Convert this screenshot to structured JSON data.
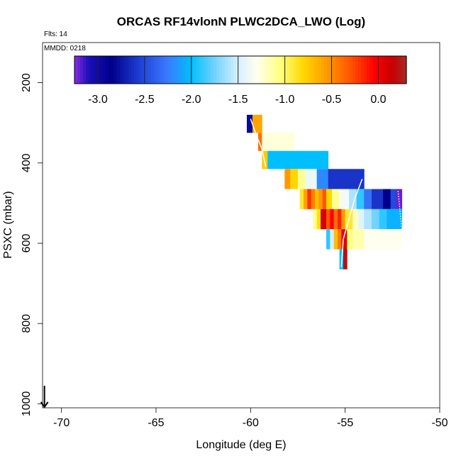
{
  "chart_data": {
    "type": "heatmap",
    "title": "ORCAS RF14vlonN PLWC2DCA_LWO (Log)",
    "flights_label": "Flts: 14",
    "date_label": "MMDD: 0218",
    "xlabel": "Longitude (deg E)",
    "ylabel": "PSXC (mbar)",
    "xlim": [
      -71,
      -50
    ],
    "ylim": [
      1010,
      100
    ],
    "x_ticks": [
      -70,
      -65,
      -60,
      -55,
      -50
    ],
    "x_tick_labels": [
      "-70",
      "-65",
      "-60",
      "-55",
      "-50"
    ],
    "y_ticks": [
      200,
      400,
      600,
      800,
      1000
    ],
    "y_tick_labels": [
      "200",
      "400",
      "600",
      "800",
      "1000"
    ],
    "colorbar": {
      "range": [
        -3.25,
        0.3
      ],
      "ticks": [
        -3.0,
        -2.5,
        -2.0,
        -1.5,
        -1.0,
        -0.5,
        0.0
      ],
      "tick_labels": [
        "-3.0",
        "-2.5",
        "-2.0",
        "-1.5",
        "-1.0",
        "-0.5",
        "0.0"
      ],
      "stops": [
        {
          "v": -3.25,
          "c": "#8a2be2"
        },
        {
          "v": -3.1,
          "c": "#1a0fb8"
        },
        {
          "v": -2.85,
          "c": "#00008b"
        },
        {
          "v": -2.55,
          "c": "#1f3fd6"
        },
        {
          "v": -2.25,
          "c": "#3a7bff"
        },
        {
          "v": -2.0,
          "c": "#00bfff"
        },
        {
          "v": -1.75,
          "c": "#73d2ff"
        },
        {
          "v": -1.5,
          "c": "#d6f0ff"
        },
        {
          "v": -1.3,
          "c": "#fffff0"
        },
        {
          "v": -1.05,
          "c": "#ffff80"
        },
        {
          "v": -0.8,
          "c": "#ffd700"
        },
        {
          "v": -0.55,
          "c": "#ff9900"
        },
        {
          "v": -0.3,
          "c": "#ff5500"
        },
        {
          "v": -0.05,
          "c": "#ff0000"
        },
        {
          "v": 0.15,
          "c": "#c80000"
        },
        {
          "v": 0.3,
          "c": "#a52a2a"
        }
      ]
    },
    "cells": [
      {
        "x0": -60.2,
        "x1": -59.9,
        "p0": 280,
        "p1": 325,
        "v": -2.8
      },
      {
        "x0": -59.9,
        "x1": -59.4,
        "p0": 280,
        "p1": 325,
        "v": -0.6
      },
      {
        "x0": -59.6,
        "x1": -59.4,
        "p0": 325,
        "p1": 370,
        "v": -0.4
      },
      {
        "x0": -59.4,
        "x1": -57.7,
        "p0": 325,
        "p1": 370,
        "v": -1.25
      },
      {
        "x0": -59.4,
        "x1": -59.1,
        "p0": 370,
        "p1": 415,
        "v": -0.75
      },
      {
        "x0": -59.1,
        "x1": -55.9,
        "p0": 370,
        "p1": 415,
        "v": -2.0
      },
      {
        "x0": -58.2,
        "x1": -57.9,
        "p0": 415,
        "p1": 465,
        "v": -0.55
      },
      {
        "x0": -57.9,
        "x1": -57.5,
        "p0": 415,
        "p1": 465,
        "v": -0.8
      },
      {
        "x0": -57.5,
        "x1": -57.1,
        "p0": 415,
        "p1": 465,
        "v": -1.1
      },
      {
        "x0": -57.1,
        "x1": -56.5,
        "p0": 415,
        "p1": 465,
        "v": -1.4
      },
      {
        "x0": -56.5,
        "x1": -55.9,
        "p0": 415,
        "p1": 465,
        "v": -2.2
      },
      {
        "x0": -55.9,
        "x1": -54.0,
        "p0": 415,
        "p1": 465,
        "v": -2.6
      },
      {
        "x0": -57.4,
        "x1": -57.2,
        "p0": 465,
        "p1": 515,
        "v": -0.9
      },
      {
        "x0": -57.2,
        "x1": -57.0,
        "p0": 465,
        "p1": 515,
        "v": -0.6
      },
      {
        "x0": -57.0,
        "x1": -56.8,
        "p0": 465,
        "p1": 515,
        "v": -0.2
      },
      {
        "x0": -56.8,
        "x1": -56.6,
        "p0": 465,
        "p1": 515,
        "v": -0.45
      },
      {
        "x0": -56.6,
        "x1": -56.4,
        "p0": 465,
        "p1": 515,
        "v": -0.7
      },
      {
        "x0": -56.4,
        "x1": -56.2,
        "p0": 465,
        "p1": 515,
        "v": -0.55
      },
      {
        "x0": -56.2,
        "x1": -56.0,
        "p0": 465,
        "p1": 515,
        "v": -0.3
      },
      {
        "x0": -56.0,
        "x1": -55.7,
        "p0": 465,
        "p1": 515,
        "v": -0.8
      },
      {
        "x0": -55.7,
        "x1": -55.3,
        "p0": 465,
        "p1": 515,
        "v": -1.1
      },
      {
        "x0": -55.3,
        "x1": -54.8,
        "p0": 465,
        "p1": 515,
        "v": -1.35
      },
      {
        "x0": -54.8,
        "x1": -54.4,
        "p0": 465,
        "p1": 515,
        "v": -1.6
      },
      {
        "x0": -54.4,
        "x1": -54.0,
        "p0": 465,
        "p1": 515,
        "v": -1.9
      },
      {
        "x0": -54.0,
        "x1": -53.6,
        "p0": 465,
        "p1": 515,
        "v": -2.3
      },
      {
        "x0": -53.6,
        "x1": -53.0,
        "p0": 465,
        "p1": 515,
        "v": -2.6
      },
      {
        "x0": -53.0,
        "x1": -52.6,
        "p0": 465,
        "p1": 515,
        "v": -2.85
      },
      {
        "x0": -52.6,
        "x1": -52.3,
        "p0": 465,
        "p1": 515,
        "v": -2.5
      },
      {
        "x0": -52.3,
        "x1": -52.0,
        "p0": 465,
        "p1": 515,
        "v": -3.2
      },
      {
        "x0": -56.7,
        "x1": -56.5,
        "p0": 515,
        "p1": 565,
        "v": -1.1
      },
      {
        "x0": -56.5,
        "x1": -56.3,
        "p0": 515,
        "p1": 565,
        "v": -0.85
      },
      {
        "x0": -56.3,
        "x1": -56.0,
        "p0": 515,
        "p1": 565,
        "v": 0.1
      },
      {
        "x0": -56.0,
        "x1": -55.8,
        "p0": 515,
        "p1": 565,
        "v": -0.3
      },
      {
        "x0": -55.8,
        "x1": -55.6,
        "p0": 515,
        "p1": 565,
        "v": -0.05
      },
      {
        "x0": -55.6,
        "x1": -55.4,
        "p0": 515,
        "p1": 565,
        "v": -0.4
      },
      {
        "x0": -55.4,
        "x1": -55.2,
        "p0": 515,
        "p1": 565,
        "v": -0.15
      },
      {
        "x0": -55.2,
        "x1": -55.0,
        "p0": 515,
        "p1": 565,
        "v": -0.55
      },
      {
        "x0": -55.0,
        "x1": -54.6,
        "p0": 515,
        "p1": 565,
        "v": -0.9
      },
      {
        "x0": -54.6,
        "x1": -54.3,
        "p0": 515,
        "p1": 565,
        "v": -1.2
      },
      {
        "x0": -54.3,
        "x1": -54.0,
        "p0": 515,
        "p1": 565,
        "v": -1.45
      },
      {
        "x0": -54.0,
        "x1": -53.6,
        "p0": 515,
        "p1": 565,
        "v": -1.6
      },
      {
        "x0": -53.6,
        "x1": -53.2,
        "p0": 515,
        "p1": 565,
        "v": -1.75
      },
      {
        "x0": -53.2,
        "x1": -52.8,
        "p0": 515,
        "p1": 565,
        "v": -1.9
      },
      {
        "x0": -52.8,
        "x1": -52.0,
        "p0": 515,
        "p1": 565,
        "v": -2.05
      },
      {
        "x0": -56.0,
        "x1": -55.8,
        "p0": 565,
        "p1": 615,
        "v": -1.9
      },
      {
        "x0": -55.8,
        "x1": -55.6,
        "p0": 565,
        "p1": 615,
        "v": -1.5
      },
      {
        "x0": -55.6,
        "x1": -55.4,
        "p0": 565,
        "p1": 615,
        "v": -0.7
      },
      {
        "x0": -55.4,
        "x1": -55.2,
        "p0": 565,
        "p1": 615,
        "v": -0.45
      },
      {
        "x0": -55.2,
        "x1": -54.9,
        "p0": 565,
        "p1": 615,
        "v": 0.05
      },
      {
        "x0": -54.9,
        "x1": -54.6,
        "p0": 565,
        "p1": 615,
        "v": -1.05
      },
      {
        "x0": -54.6,
        "x1": -54.0,
        "p0": 565,
        "p1": 615,
        "v": -1.15
      },
      {
        "x0": -54.0,
        "x1": -52.0,
        "p0": 565,
        "p1": 615,
        "v": -1.3
      },
      {
        "x0": -55.3,
        "x1": -55.1,
        "p0": 615,
        "p1": 665,
        "v": -2.0
      },
      {
        "x0": -55.1,
        "x1": -54.9,
        "p0": 615,
        "p1": 665,
        "v": 0.2
      }
    ],
    "track_lines": [
      {
        "points": [
          [
            -60.0,
            290
          ],
          [
            -59.7,
            330
          ],
          [
            -59.4,
            365
          ],
          [
            -59.2,
            410
          ]
        ],
        "dotted": false
      },
      {
        "points": [
          [
            -54.1,
            440
          ],
          [
            -54.5,
            490
          ],
          [
            -54.8,
            540
          ],
          [
            -55.1,
            590
          ],
          [
            -55.2,
            660
          ]
        ],
        "dotted": false
      },
      {
        "points": [
          [
            -52.2,
            470
          ],
          [
            -52.1,
            520
          ],
          [
            -52.0,
            565
          ]
        ],
        "dotted": true
      }
    ],
    "arrow": {
      "x": -70.9,
      "p_top": 955,
      "p_bottom": 1008
    }
  }
}
